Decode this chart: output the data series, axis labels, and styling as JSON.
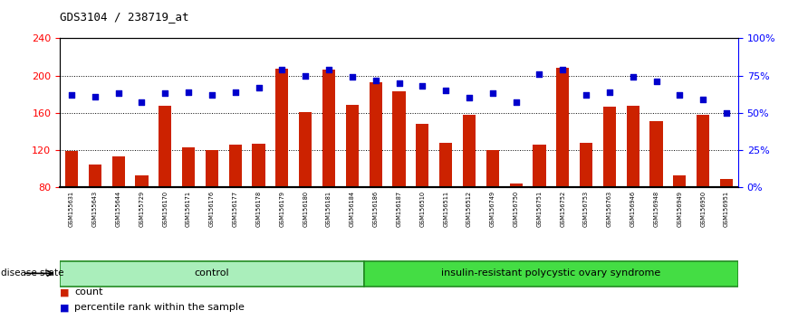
{
  "title": "GDS3104 / 238719_at",
  "samples": [
    "GSM155631",
    "GSM155643",
    "GSM155644",
    "GSM155729",
    "GSM156170",
    "GSM156171",
    "GSM156176",
    "GSM156177",
    "GSM156178",
    "GSM156179",
    "GSM156180",
    "GSM156181",
    "GSM156184",
    "GSM156186",
    "GSM156187",
    "GSM156510",
    "GSM156511",
    "GSM156512",
    "GSM156749",
    "GSM156750",
    "GSM156751",
    "GSM156752",
    "GSM156753",
    "GSM156763",
    "GSM156946",
    "GSM156948",
    "GSM156949",
    "GSM156950",
    "GSM156951"
  ],
  "bar_values": [
    119,
    104,
    113,
    93,
    168,
    123,
    120,
    126,
    127,
    207,
    161,
    206,
    169,
    193,
    183,
    148,
    128,
    158,
    120,
    84,
    126,
    208,
    128,
    167,
    168,
    151,
    93,
    158,
    89
  ],
  "dot_values": [
    62,
    61,
    63,
    57,
    63,
    64,
    62,
    64,
    67,
    79,
    75,
    79,
    74,
    72,
    70,
    68,
    65,
    60,
    63,
    57,
    76,
    79,
    62,
    64,
    74,
    71,
    62,
    59,
    50
  ],
  "control_count": 13,
  "bar_color": "#CC2200",
  "dot_color": "#0000CC",
  "ylim_left": [
    80,
    240
  ],
  "ylim_right": [
    0,
    100
  ],
  "yticks_left": [
    80,
    120,
    160,
    200,
    240
  ],
  "yticks_right": [
    0,
    25,
    50,
    75,
    100
  ],
  "yticklabels_right": [
    "0%",
    "25%",
    "50%",
    "75%",
    "100%"
  ],
  "grid_values": [
    120,
    160,
    200
  ],
  "legend_items": [
    "count",
    "percentile rank within the sample"
  ],
  "disease_state_label": "disease state",
  "label_bg_color": "#C8C8C8",
  "ctrl_color_light": "#BBEEAA",
  "ctrl_color_dark": "#44CC44",
  "irp_color": "#33CC33",
  "group_labels": [
    "control",
    "insulin-resistant polycystic ovary syndrome"
  ]
}
